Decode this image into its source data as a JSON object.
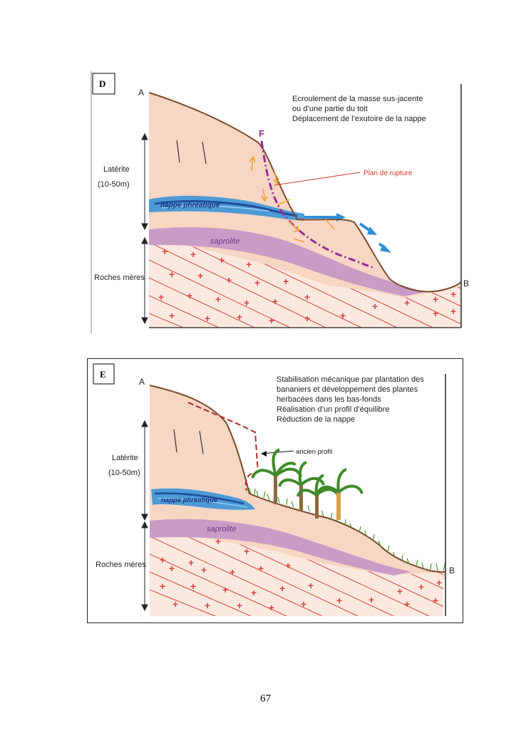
{
  "page_number": "67",
  "colors": {
    "laterite": "#f7d6c4",
    "saprolite": "#c99cc6",
    "bedrock_lines": "#d9433f",
    "ground_line": "#7a4a2c",
    "water": "#2f8fd8",
    "water_dark": "#1f4e9c",
    "rupture": "#9a2a9a",
    "rupture_label": "#d23b2b",
    "arrows": "#f0a030",
    "plants": "#4a9a2a",
    "old_profile": "#b52a2a"
  },
  "panel_d": {
    "label": "D",
    "point_a": "A",
    "point_b": "B",
    "fault_label": "F",
    "caption": [
      "Ecroulement de la masse sus-jacente",
      "ou d’une partie du toit",
      "Déplacement de l’exutoire de la nappe"
    ],
    "rupture_label": "Plan de rupture",
    "laterite_label": "Latérite",
    "laterite_thickness": "(10-50m)",
    "bedrock_label": "Roches mères",
    "water_label": "nappe phréatique",
    "saprolite_label": "saprolite"
  },
  "panel_e": {
    "label": "E",
    "point_a": "A",
    "point_b": "B",
    "caption": [
      "Stabilisation mécanique par plantation des",
      "bananiers et développement des plantes",
      "herbacées dans les bas-fonds",
      "Réalisation d’un profil d’équilibre",
      "Réduction de la nappe"
    ],
    "old_profile_label": "ancien profil",
    "laterite_label": "Latérite",
    "laterite_thickness": "(10-50m)",
    "bedrock_label": "Roches mères",
    "water_label": "nappe phréatique",
    "saprolite_label": "saprolite"
  }
}
